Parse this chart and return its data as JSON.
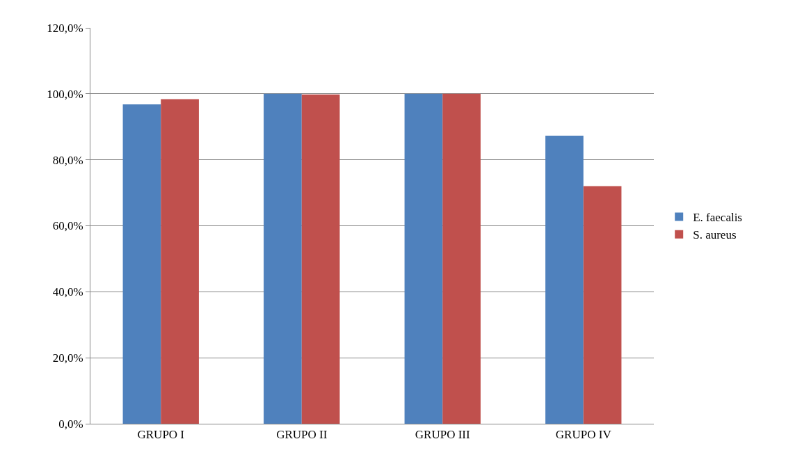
{
  "chart_data": {
    "type": "bar",
    "categories": [
      "GRUPO I",
      "GRUPO II",
      "GRUPO III",
      "GRUPO IV"
    ],
    "series": [
      {
        "name": "E. faecalis",
        "color": "#4f81bd",
        "values": [
          96.8,
          100,
          100,
          87.3
        ]
      },
      {
        "name": "S. aureus",
        "color": "#c0504d",
        "values": [
          98.4,
          99.8,
          100,
          72.0
        ]
      }
    ],
    "ylim": [
      0,
      120
    ],
    "yticks": [
      {
        "value": 0,
        "label": "0,0%"
      },
      {
        "value": 20,
        "label": "20,0%"
      },
      {
        "value": 40,
        "label": "40,0%"
      },
      {
        "value": 60,
        "label": "60,0%"
      },
      {
        "value": 80,
        "label": "80,0%"
      },
      {
        "value": 100,
        "label": "100,0%"
      },
      {
        "value": 120,
        "label": "120,0%"
      }
    ],
    "grid": "y",
    "legend": "right"
  }
}
